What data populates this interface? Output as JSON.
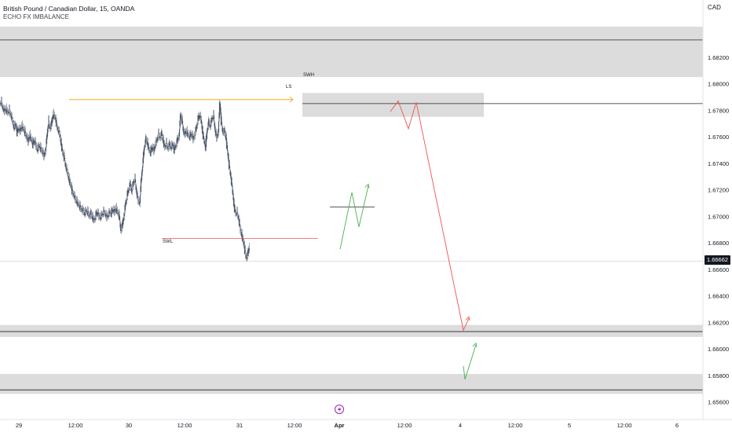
{
  "symbol": {
    "title": "British Pound / Canadian Dollar, 15, OANDA",
    "indicator": "ECHO FX IMBALANCE",
    "currency": "CAD",
    "current_price_label": "1.66662"
  },
  "annotations": {
    "swh": "SWH",
    "ls": "LS",
    "swl": "SWL",
    "event_icon": "lightning-event-icon"
  },
  "colors": {
    "candle": "#4a5568",
    "zone": "#d6d6d6",
    "projection_bear": "#ef5350",
    "projection_bull": "#4caf50",
    "high_line": "#ff9800",
    "low_line": "#ef5350",
    "event": "#9c27b0"
  },
  "chart_data": {
    "type": "candlestick",
    "y_ticks": [
      "1.68200",
      "1.68000",
      "1.67800",
      "1.67600",
      "1.67400",
      "1.67200",
      "1.67000",
      "1.66800",
      "1.66600",
      "1.66400",
      "1.66200",
      "1.66000",
      "1.65800",
      "1.65600"
    ],
    "x_ticks": [
      "29",
      "12:00",
      "30",
      "12:00",
      "31",
      "12:00",
      "Apr",
      "12:00",
      "4",
      "12:00",
      "5",
      "12:00",
      "6"
    ],
    "ylim": [
      1.6552,
      1.6843
    ],
    "current_price": 1.66662,
    "zones": [
      [
        1.6805,
        1.6843
      ],
      [
        1.6775,
        1.6793
      ],
      [
        1.6609,
        1.6618
      ],
      [
        1.6566,
        1.6581
      ]
    ],
    "price_path": [
      [
        0,
        1.6785
      ],
      [
        2,
        1.6786
      ],
      [
        4,
        1.6781
      ],
      [
        6,
        1.6779
      ],
      [
        8,
        1.6781
      ],
      [
        10,
        1.6778
      ],
      [
        12,
        1.678
      ],
      [
        14,
        1.6776
      ],
      [
        16,
        1.6772
      ],
      [
        18,
        1.6767
      ],
      [
        20,
        1.6769
      ],
      [
        22,
        1.6763
      ],
      [
        24,
        1.6766
      ],
      [
        26,
        1.6764
      ],
      [
        28,
        1.6768
      ],
      [
        30,
        1.6766
      ],
      [
        32,
        1.6763
      ],
      [
        34,
        1.676
      ],
      [
        36,
        1.6756
      ],
      [
        38,
        1.6761
      ],
      [
        40,
        1.6758
      ],
      [
        42,
        1.6754
      ],
      [
        44,
        1.6757
      ],
      [
        46,
        1.6753
      ],
      [
        48,
        1.675
      ],
      [
        50,
        1.6753
      ],
      [
        52,
        1.6751
      ],
      [
        54,
        1.6749
      ],
      [
        56,
        1.6745
      ],
      [
        58,
        1.6749
      ],
      [
        60,
        1.676
      ],
      [
        62,
        1.6772
      ],
      [
        64,
        1.6766
      ],
      [
        66,
        1.677
      ],
      [
        68,
        1.6777
      ],
      [
        70,
        1.6775
      ],
      [
        72,
        1.677
      ],
      [
        74,
        1.6765
      ],
      [
        76,
        1.6762
      ],
      [
        78,
        1.6755
      ],
      [
        80,
        1.6748
      ],
      [
        82,
        1.6744
      ],
      [
        84,
        1.6737
      ],
      [
        86,
        1.6733
      ],
      [
        88,
        1.6728
      ],
      [
        90,
        1.6724
      ],
      [
        92,
        1.6719
      ],
      [
        94,
        1.6716
      ],
      [
        96,
        1.6713
      ],
      [
        98,
        1.6711
      ],
      [
        100,
        1.6709
      ],
      [
        102,
        1.6707
      ],
      [
        104,
        1.6705
      ],
      [
        106,
        1.6704
      ],
      [
        108,
        1.6702
      ],
      [
        110,
        1.6704
      ],
      [
        112,
        1.6703
      ],
      [
        114,
        1.67
      ],
      [
        116,
        1.6702
      ],
      [
        118,
        1.6699
      ],
      [
        120,
        1.6697
      ],
      [
        122,
        1.67
      ],
      [
        124,
        1.6703
      ],
      [
        126,
        1.67
      ],
      [
        128,
        1.6699
      ],
      [
        130,
        1.6701
      ],
      [
        132,
        1.6703
      ],
      [
        134,
        1.6702
      ],
      [
        136,
        1.6699
      ],
      [
        138,
        1.6701
      ],
      [
        140,
        1.6703
      ],
      [
        142,
        1.6702
      ],
      [
        144,
        1.6705
      ],
      [
        146,
        1.6703
      ],
      [
        148,
        1.6706
      ],
      [
        150,
        1.6703
      ],
      [
        152,
        1.67
      ],
      [
        154,
        1.6689
      ],
      [
        156,
        1.6693
      ],
      [
        158,
        1.67
      ],
      [
        160,
        1.6709
      ],
      [
        162,
        1.6715
      ],
      [
        164,
        1.672
      ],
      [
        166,
        1.6724
      ],
      [
        168,
        1.6719
      ],
      [
        170,
        1.6725
      ],
      [
        172,
        1.6728
      ],
      [
        174,
        1.6718
      ],
      [
        176,
        1.6712
      ],
      [
        178,
        1.671
      ],
      [
        180,
        1.6727
      ],
      [
        182,
        1.674
      ],
      [
        184,
        1.6752
      ],
      [
        186,
        1.6758
      ],
      [
        188,
        1.6755
      ],
      [
        190,
        1.675
      ],
      [
        192,
        1.6748
      ],
      [
        194,
        1.6752
      ],
      [
        196,
        1.6749
      ],
      [
        198,
        1.6754
      ],
      [
        200,
        1.6757
      ],
      [
        202,
        1.6762
      ],
      [
        204,
        1.6759
      ],
      [
        206,
        1.6762
      ],
      [
        208,
        1.6757
      ],
      [
        210,
        1.6752
      ],
      [
        212,
        1.6755
      ],
      [
        214,
        1.6751
      ],
      [
        216,
        1.6754
      ],
      [
        218,
        1.6752
      ],
      [
        220,
        1.6754
      ],
      [
        222,
        1.675
      ],
      [
        224,
        1.6753
      ],
      [
        226,
        1.6757
      ],
      [
        228,
        1.676
      ],
      [
        230,
        1.6776
      ],
      [
        232,
        1.6772
      ],
      [
        234,
        1.6763
      ],
      [
        236,
        1.6762
      ],
      [
        238,
        1.6764
      ],
      [
        240,
        1.6761
      ],
      [
        242,
        1.676
      ],
      [
        244,
        1.6762
      ],
      [
        246,
        1.6758
      ],
      [
        248,
        1.6761
      ],
      [
        250,
        1.6766
      ],
      [
        252,
        1.6772
      ],
      [
        254,
        1.6776
      ],
      [
        256,
        1.6773
      ],
      [
        258,
        1.6764
      ],
      [
        260,
        1.6757
      ],
      [
        262,
        1.6752
      ],
      [
        264,
        1.6765
      ],
      [
        266,
        1.6771
      ],
      [
        268,
        1.6768
      ],
      [
        270,
        1.6773
      ],
      [
        272,
        1.6776
      ],
      [
        274,
        1.6765
      ],
      [
        276,
        1.6759
      ],
      [
        278,
        1.6763
      ],
      [
        280,
        1.6785
      ],
      [
        282,
        1.6771
      ],
      [
        284,
        1.6763
      ],
      [
        286,
        1.6764
      ],
      [
        288,
        1.6759
      ],
      [
        290,
        1.6748
      ],
      [
        292,
        1.6738
      ],
      [
        294,
        1.673
      ],
      [
        296,
        1.672
      ],
      [
        298,
        1.6709
      ],
      [
        300,
        1.6702
      ],
      [
        302,
        1.6703
      ],
      [
        304,
        1.6698
      ],
      [
        306,
        1.669
      ],
      [
        308,
        1.6686
      ],
      [
        310,
        1.6681
      ],
      [
        312,
        1.6674
      ],
      [
        314,
        1.6668
      ],
      [
        316,
        1.6672
      ],
      [
        318,
        1.6677
      ]
    ],
    "swing_high_line": [
      1.6788
    ],
    "swing_low_line": [
      1.66832
    ],
    "projection_bear": [
      [
        497,
        1.6779
      ],
      [
        507,
        1.6787
      ],
      [
        520,
        1.6766
      ],
      [
        530,
        1.6786
      ],
      [
        590,
        1.6614
      ],
      [
        597,
        1.6623
      ]
    ],
    "projection_bull_1": [
      [
        433,
        1.6675
      ],
      [
        448,
        1.6718
      ],
      [
        457,
        1.6692
      ],
      [
        469,
        1.6723
      ]
    ],
    "projection_bull_2": [
      [
        590,
        1.6587
      ],
      [
        592,
        1.6577
      ],
      [
        606,
        1.6603
      ]
    ]
  }
}
